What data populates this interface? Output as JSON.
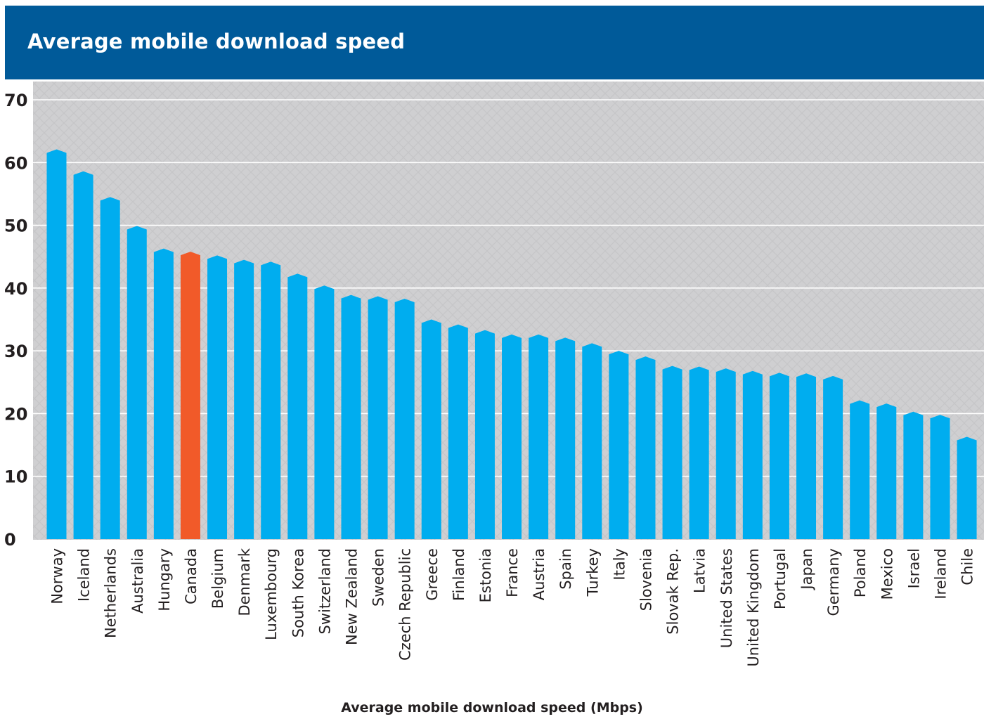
{
  "header": {
    "title": "Average mobile download speed"
  },
  "colors": {
    "header_bg": "#005a99",
    "bar": "#00adef",
    "highlight": "#f15a29",
    "plot_bg": "#cfcfd1",
    "gridline": "#ffffff",
    "text": "#231f20"
  },
  "chart_data": {
    "type": "bar",
    "title": "Average mobile download speed",
    "xlabel": "Average mobile download speed (Mbps)",
    "ylabel": "",
    "ylim": [
      0,
      70
    ],
    "yticks": [
      0,
      10,
      20,
      30,
      40,
      50,
      60,
      70
    ],
    "grid": true,
    "highlight_category": "Canada",
    "categories": [
      "Norway",
      "Iceland",
      "Netherlands",
      "Australia",
      "Hungary",
      "Canada",
      "Belgium",
      "Denmark",
      "Luxembourg",
      "South Korea",
      "Switzerland",
      "New Zealand",
      "Sweden",
      "Czech Republic",
      "Greece",
      "Finland",
      "Estonia",
      "France",
      "Austria",
      "Spain",
      "Turkey",
      "Italy",
      "Slovenia",
      "Slovak Rep.",
      "Latvia",
      "United States",
      "United Kingdom",
      "Portugal",
      "Japan",
      "Germany",
      "Poland",
      "Mexico",
      "Israel",
      "Ireland",
      "Chile"
    ],
    "values": [
      62.1,
      58.6,
      54.5,
      49.9,
      46.3,
      45.8,
      45.2,
      44.5,
      44.2,
      42.3,
      40.4,
      38.9,
      38.7,
      38.3,
      35.0,
      34.2,
      33.3,
      32.6,
      32.6,
      32.1,
      31.2,
      30.0,
      29.1,
      27.6,
      27.5,
      27.2,
      26.8,
      26.5,
      26.4,
      26.0,
      22.1,
      21.6,
      20.3,
      19.8,
      16.3
    ]
  }
}
